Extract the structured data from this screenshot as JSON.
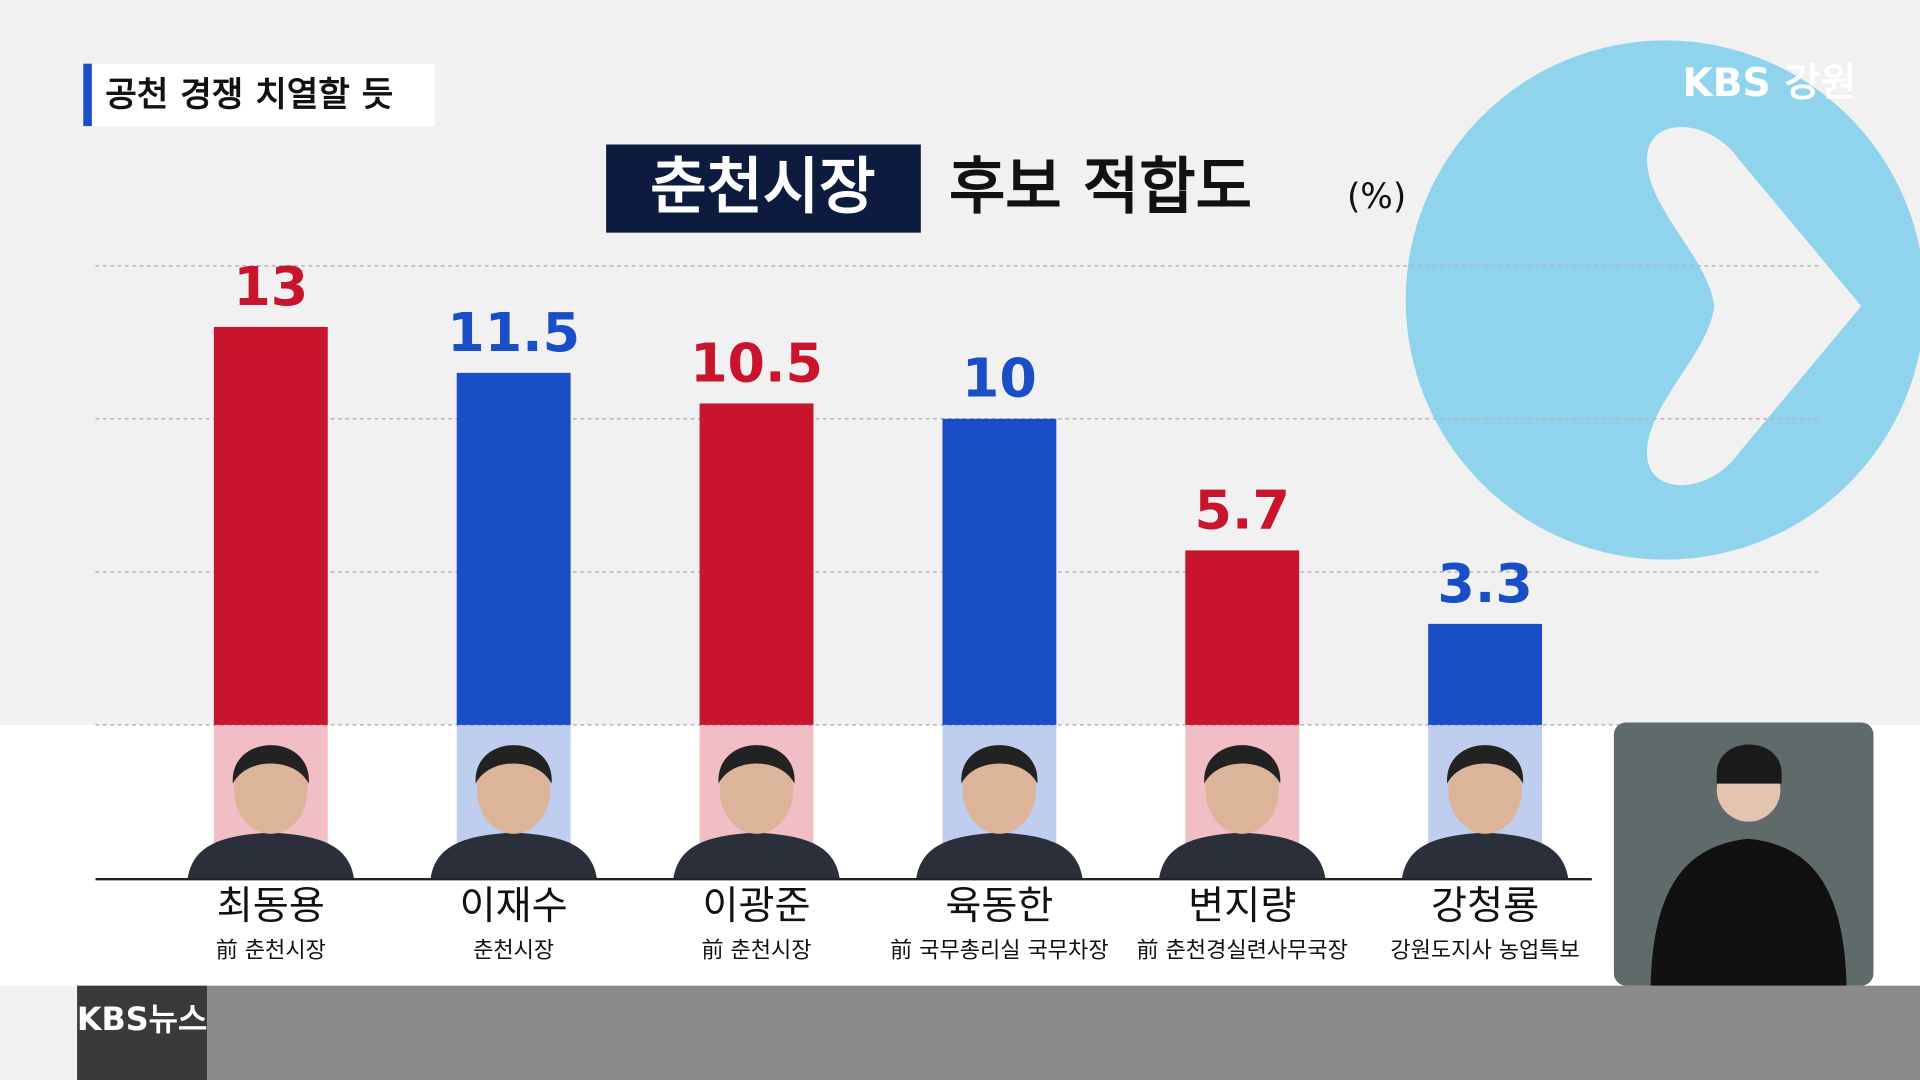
{
  "badge": "공천 경쟁 치열할 듯",
  "logo": "KBS 강원",
  "footer_logo": "KBS뉴스",
  "chart_data": {
    "type": "bar",
    "title_highlight": "춘천시장",
    "title": "후보 적합도",
    "unit": "(%)",
    "categories": [
      "최동용",
      "이재수",
      "이광준",
      "육동한",
      "변지량",
      "강청룡"
    ],
    "descriptions": [
      "前 춘천시장",
      "춘천시장",
      "前 춘천시장",
      "前 국무총리실 국무차장",
      "前 춘천경실련사무국장",
      "강원도지사 농업특보"
    ],
    "values": [
      13,
      11.5,
      10.5,
      10,
      5.7,
      3.3
    ],
    "colors": [
      "#c8142c",
      "#1a4ec6",
      "#c8142c",
      "#1a4ec6",
      "#c8142c",
      "#1a4ec6"
    ],
    "ylim": [
      0,
      15
    ],
    "yticks": [
      0,
      5,
      10,
      15
    ],
    "grid": true
  }
}
